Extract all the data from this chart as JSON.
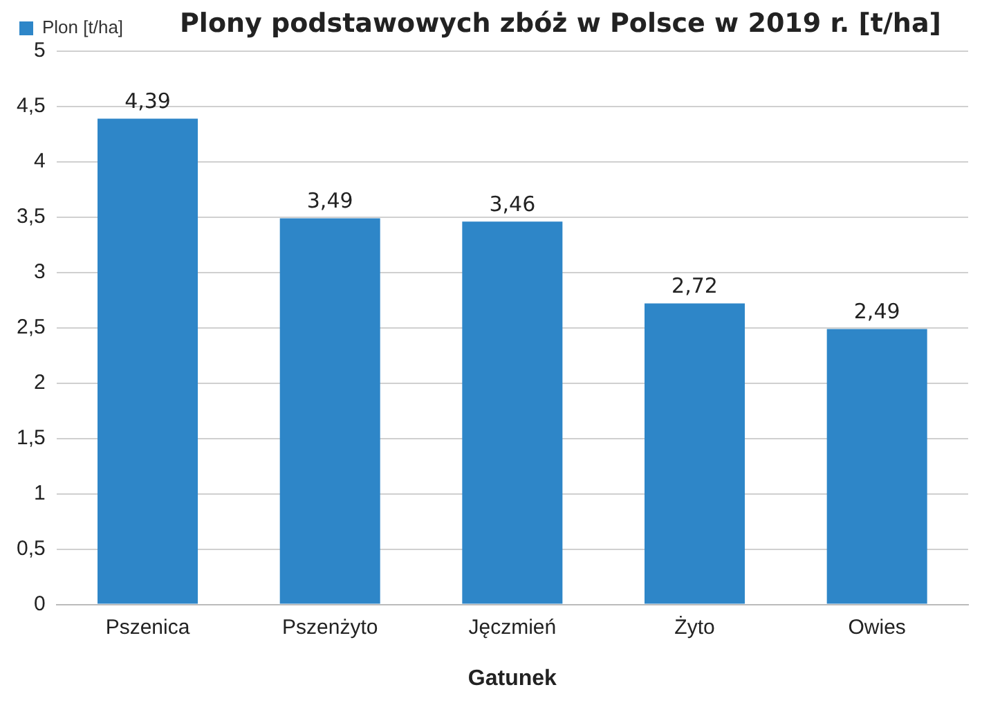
{
  "chart_data": {
    "type": "bar",
    "title": "Plony podstawowych zbóż w Polsce w 2019 r. [t/ha]",
    "xlabel": "Gatunek",
    "categories": [
      "Pszenica",
      "Pszenżyto",
      "Jęczmień",
      "Żyto",
      "Owies"
    ],
    "series": [
      {
        "name": "Plon [t/ha]",
        "color": "#2e86c8",
        "values": [
          4.39,
          3.49,
          3.46,
          2.72,
          2.49
        ],
        "value_labels": [
          "4,39",
          "3,49",
          "3,46",
          "2,72",
          "2,49"
        ]
      }
    ],
    "ylim": [
      0,
      5
    ],
    "yticks": [
      0,
      {
        "value": 0.5,
        "label": "0,5"
      },
      1,
      {
        "value": 1.5,
        "label": "1,5"
      },
      2,
      {
        "value": 2.5,
        "label": "2,5"
      },
      3,
      {
        "value": 3.5,
        "label": "3,5"
      },
      4,
      {
        "value": 4.5,
        "label": "4,5"
      },
      5
    ],
    "grid": "y",
    "legend": "top left"
  }
}
